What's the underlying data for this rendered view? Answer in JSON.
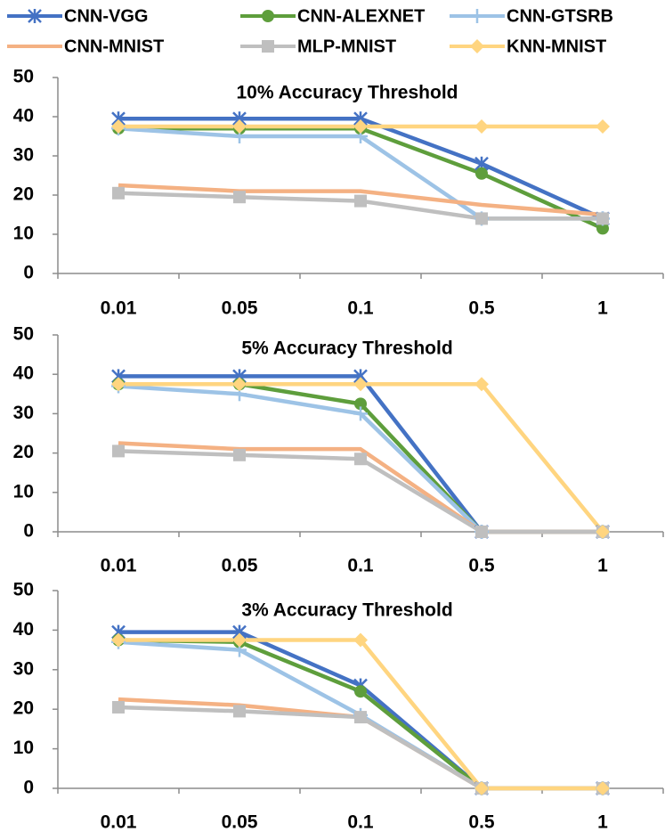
{
  "chart_data": [
    {
      "type": "line",
      "title": "10% Accuracy Threshold",
      "categories": [
        "0.01",
        "0.05",
        "0.1",
        "0.5",
        "1"
      ],
      "ylim": [
        0,
        50
      ],
      "yticks": [
        0,
        10,
        20,
        30,
        40,
        50
      ],
      "series": [
        {
          "name": "CNN-VGG",
          "color": "#4472c4",
          "marker": "asterisk",
          "values": [
            39.5,
            39.5,
            39.5,
            28,
            14
          ]
        },
        {
          "name": "CNN-ALEXNET",
          "color": "#5e9e3c",
          "marker": "circle",
          "values": [
            37,
            37,
            37,
            25.5,
            11.5
          ]
        },
        {
          "name": "CNN-GTSRB",
          "color": "#9dc3e6",
          "marker": "plus",
          "values": [
            37,
            35,
            35,
            14,
            14
          ]
        },
        {
          "name": "CNN-MNIST",
          "color": "#f4b183",
          "marker": "none",
          "values": [
            22.5,
            21,
            21,
            17.5,
            15
          ]
        },
        {
          "name": "MLP-MNIST",
          "color": "#bfbfbf",
          "marker": "square",
          "values": [
            20.5,
            19.5,
            18.5,
            14,
            14
          ]
        },
        {
          "name": "KNN-MNIST",
          "color": "#ffd580",
          "marker": "diamond",
          "values": [
            37.5,
            37.5,
            37.5,
            37.5,
            37.5
          ]
        }
      ]
    },
    {
      "type": "line",
      "title": "5% Accuracy Threshold",
      "categories": [
        "0.01",
        "0.05",
        "0.1",
        "0.5",
        "1"
      ],
      "ylim": [
        0,
        50
      ],
      "yticks": [
        0,
        10,
        20,
        30,
        40,
        50
      ],
      "series": [
        {
          "name": "CNN-VGG",
          "color": "#4472c4",
          "marker": "asterisk",
          "values": [
            39.5,
            39.5,
            39.5,
            0,
            0
          ]
        },
        {
          "name": "CNN-ALEXNET",
          "color": "#5e9e3c",
          "marker": "circle",
          "values": [
            37.5,
            37.5,
            32.5,
            0,
            0
          ]
        },
        {
          "name": "CNN-GTSRB",
          "color": "#9dc3e6",
          "marker": "plus",
          "values": [
            37,
            35,
            30,
            0,
            0
          ]
        },
        {
          "name": "CNN-MNIST",
          "color": "#f4b183",
          "marker": "none",
          "values": [
            22.5,
            21,
            21,
            0,
            0
          ]
        },
        {
          "name": "MLP-MNIST",
          "color": "#bfbfbf",
          "marker": "square",
          "values": [
            20.5,
            19.5,
            18.5,
            0,
            0
          ]
        },
        {
          "name": "KNN-MNIST",
          "color": "#ffd580",
          "marker": "diamond",
          "values": [
            37.5,
            37.5,
            37.5,
            37.5,
            0
          ]
        }
      ]
    },
    {
      "type": "line",
      "title": "3% Accuracy Threshold",
      "categories": [
        "0.01",
        "0.05",
        "0.1",
        "0.5",
        "1"
      ],
      "ylim": [
        0,
        50
      ],
      "yticks": [
        0,
        10,
        20,
        30,
        40,
        50
      ],
      "series": [
        {
          "name": "CNN-VGG",
          "color": "#4472c4",
          "marker": "asterisk",
          "values": [
            39.5,
            39.5,
            26,
            0,
            0
          ]
        },
        {
          "name": "CNN-ALEXNET",
          "color": "#5e9e3c",
          "marker": "circle",
          "values": [
            37.5,
            37,
            24.5,
            0,
            0
          ]
        },
        {
          "name": "CNN-GTSRB",
          "color": "#9dc3e6",
          "marker": "plus",
          "values": [
            37,
            35,
            18.5,
            0,
            0
          ]
        },
        {
          "name": "CNN-MNIST",
          "color": "#f4b183",
          "marker": "none",
          "values": [
            22.5,
            21,
            18,
            0,
            0
          ]
        },
        {
          "name": "MLP-MNIST",
          "color": "#bfbfbf",
          "marker": "square",
          "values": [
            20.5,
            19.5,
            18,
            0,
            0
          ]
        },
        {
          "name": "KNN-MNIST",
          "color": "#ffd580",
          "marker": "diamond",
          "values": [
            37.5,
            37.5,
            37.5,
            0,
            0
          ]
        }
      ]
    }
  ]
}
